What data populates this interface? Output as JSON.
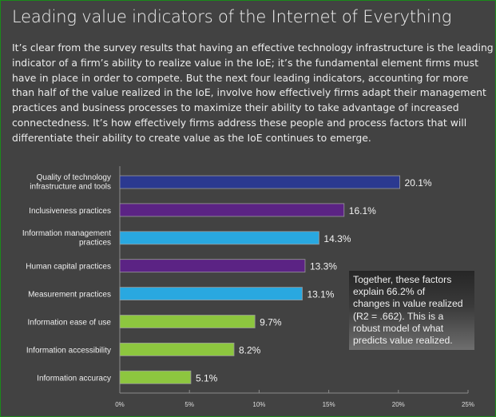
{
  "title": "Leading value indicators of the Internet of Everything",
  "intro_lines": [
    "It’s clear from the survey results that having an effective technology infrastructure is the leading",
    "indicator of a firm’s ability to realize value in the IoE; it’s the fundamental element firms must",
    "have in place in order to compete. But the next four leading indicators, accounting for more",
    "than half of the value realized in the IoE, involve how effectively firms adapt their management",
    "practices and business processes to maximize their ability to take advantage of increased",
    "connectedness. It’s how effectively firms address these people and process factors that will",
    "differentiate their ability to create value as the IoE continues to emerge."
  ],
  "note_lines": [
    "Together, these factors",
    "explain 66.2% of",
    "changes in value realized",
    "(R2 = .662). This is a",
    "robust model of what",
    "predicts value realized."
  ],
  "chart_data": {
    "type": "bar",
    "orientation": "horizontal",
    "categories": [
      [
        "Quality of technology",
        "infrastructure and tools"
      ],
      [
        "Inclusiveness practices"
      ],
      [
        "Information management",
        "practices"
      ],
      [
        "Human capital practices"
      ],
      [
        "Measurement practices"
      ],
      [
        "Information ease of use"
      ],
      [
        "Information accessibility"
      ],
      [
        "Information accuracy"
      ]
    ],
    "values": [
      20.1,
      16.1,
      14.3,
      13.3,
      13.1,
      9.7,
      8.2,
      5.1
    ],
    "value_labels": [
      "20.1%",
      "16.1%",
      "14.3%",
      "13.3%",
      "13.1%",
      "9.7%",
      "8.2%",
      "5.1%"
    ],
    "colors": [
      "#2b3990",
      "#5b2384",
      "#29a8e0",
      "#5b2384",
      "#29a8e0",
      "#8dc63f",
      "#8dc63f",
      "#8dc63f"
    ],
    "xlim": [
      0,
      25
    ],
    "xticks": [
      0,
      5,
      10,
      15,
      20,
      25
    ],
    "xtick_labels": [
      "0%",
      "5%",
      "10%",
      "15%",
      "20%",
      "25%"
    ],
    "grid": false,
    "xlabel": "",
    "ylabel": ""
  }
}
